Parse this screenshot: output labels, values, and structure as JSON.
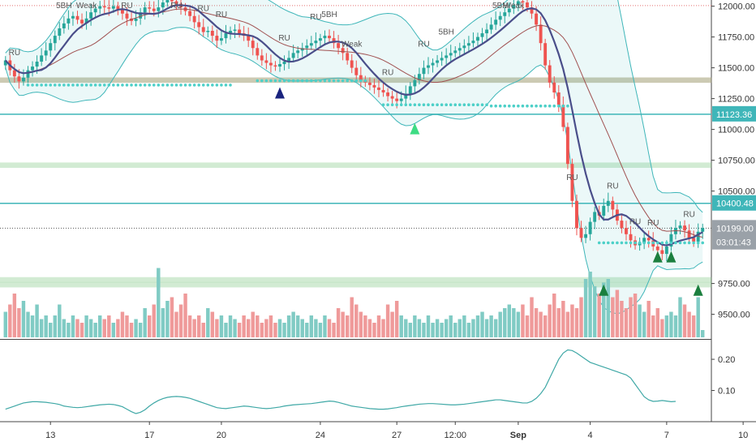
{
  "chart_data": {
    "type": "candlestick",
    "symbol_hint": "",
    "price_axis": {
      "ylim": [
        9300,
        12050
      ],
      "ticks": [
        "12000.00",
        "11750.00",
        "11500.00",
        "11250.00",
        "11000.00",
        "10750.00",
        "10500.00",
        "9750.00",
        "9500.00"
      ],
      "tick_values": [
        12000,
        11750,
        11500,
        11250,
        11000,
        10750,
        10500,
        9750,
        9500
      ]
    },
    "price_labels": [
      {
        "text": "11123.36",
        "value": 11123.36,
        "color": "#3fb6b9"
      },
      {
        "text": "10400.48",
        "value": 10400.48,
        "color": "#3fb6b9"
      },
      {
        "text": "10199.00",
        "value": 10199,
        "color": "#9aa1a8"
      },
      {
        "text": "03:01:43",
        "value": 10085,
        "color": "#9aa1a8"
      }
    ],
    "osc_axis": {
      "ylim": [
        0.0,
        0.26
      ],
      "ticks": [
        "0.20",
        "0.10"
      ],
      "tick_values": [
        0.2,
        0.1
      ]
    },
    "x_labels": [
      "13",
      "17",
      "20",
      "24",
      "27",
      "12:00",
      "Sep",
      "4",
      "7",
      "10"
    ],
    "x_label_idx": [
      10,
      32,
      48,
      70,
      87,
      100,
      114,
      130,
      147,
      164
    ],
    "horizontal_levels": [
      {
        "value": 12005,
        "color": "#e57373",
        "style": "dotted"
      },
      {
        "value": 11400,
        "color": "#e57373",
        "style": "band"
      },
      {
        "value": 11400,
        "color": "#81c784",
        "style": "band"
      },
      {
        "value": 11123.36,
        "color": "#3fb6b9",
        "style": "solid"
      },
      {
        "value": 10710,
        "color": "#81c784",
        "style": "band"
      },
      {
        "value": 10400.48,
        "color": "#3fb6b9",
        "style": "solid"
      },
      {
        "value": 10199,
        "color": "#555555",
        "style": "dotted"
      },
      {
        "value": 9780,
        "color": "#81c784",
        "style": "band"
      },
      {
        "value": 9740,
        "color": "#81c784",
        "style": "band"
      }
    ],
    "close_series": [
      11560,
      11480,
      11430,
      11390,
      11420,
      11480,
      11510,
      11550,
      11600,
      11640,
      11700,
      11760,
      11820,
      11860,
      11900,
      11920,
      11890,
      11860,
      11900,
      11950,
      11980,
      12000,
      11990,
      11980,
      12000,
      11970,
      11940,
      11900,
      11880,
      11900,
      11950,
      11990,
      11980,
      11960,
      11990,
      12030,
      12050,
      12040,
      12020,
      11990,
      11960,
      11920,
      11870,
      11830,
      11790,
      11800,
      11760,
      11720,
      11740,
      11780,
      11800,
      11810,
      11780,
      11760,
      11720,
      11660,
      11600,
      11560,
      11540,
      11520,
      11510,
      11530,
      11550,
      11580,
      11620,
      11640,
      11660,
      11680,
      11700,
      11720,
      11740,
      11760,
      11740,
      11700,
      11660,
      11620,
      11560,
      11500,
      11440,
      11400,
      11380,
      11360,
      11340,
      11320,
      11300,
      11270,
      11250,
      11230,
      11250,
      11290,
      11350,
      11400,
      11450,
      11500,
      11520,
      11540,
      11560,
      11580,
      11600,
      11620,
      11640,
      11660,
      11680,
      11700,
      11720,
      11750,
      11780,
      11810,
      11850,
      11890,
      11920,
      11950,
      11980,
      12010,
      12040,
      12030,
      11990,
      11940,
      11850,
      11700,
      11520,
      11380,
      11300,
      11200,
      11020,
      10720,
      10420,
      10200,
      10120,
      10150,
      10250,
      10330,
      10300,
      10380,
      10420,
      10350,
      10260,
      10200,
      10150,
      10100,
      10060,
      10080,
      10120,
      10100,
      10050,
      10020,
      9990,
      10050,
      10150,
      10200,
      10220,
      10180,
      10120,
      10090,
      10170,
      10200
    ],
    "volume_series": [
      0.35,
      0.45,
      0.6,
      0.4,
      0.5,
      0.35,
      0.3,
      0.45,
      0.25,
      0.3,
      0.2,
      0.3,
      0.45,
      0.25,
      0.2,
      0.3,
      0.25,
      0.2,
      0.3,
      0.25,
      0.2,
      0.3,
      0.25,
      0.3,
      0.2,
      0.25,
      0.35,
      0.3,
      0.2,
      0.25,
      0.2,
      0.4,
      0.3,
      0.45,
      0.95,
      0.4,
      0.5,
      0.55,
      0.35,
      0.45,
      0.6,
      0.3,
      0.25,
      0.3,
      0.2,
      0.4,
      0.35,
      0.25,
      0.3,
      0.2,
      0.3,
      0.25,
      0.2,
      0.3,
      0.25,
      0.35,
      0.3,
      0.2,
      0.25,
      0.3,
      0.2,
      0.25,
      0.2,
      0.3,
      0.35,
      0.3,
      0.25,
      0.2,
      0.3,
      0.25,
      0.2,
      0.3,
      0.25,
      0.2,
      0.4,
      0.35,
      0.3,
      0.55,
      0.45,
      0.35,
      0.3,
      0.25,
      0.2,
      0.3,
      0.25,
      0.45,
      0.35,
      0.5,
      0.3,
      0.25,
      0.2,
      0.3,
      0.25,
      0.2,
      0.3,
      0.2,
      0.25,
      0.2,
      0.25,
      0.3,
      0.2,
      0.25,
      0.3,
      0.2,
      0.25,
      0.3,
      0.35,
      0.25,
      0.3,
      0.25,
      0.35,
      0.4,
      0.45,
      0.4,
      0.35,
      0.45,
      0.3,
      0.55,
      0.4,
      0.35,
      0.3,
      0.45,
      0.6,
      0.4,
      0.5,
      0.35,
      0.45,
      0.4,
      0.55,
      0.8,
      0.9,
      0.7,
      0.6,
      0.75,
      0.8,
      0.55,
      0.65,
      0.5,
      0.4,
      0.55,
      0.6,
      0.45,
      0.35,
      0.5,
      0.3,
      0.4,
      0.25,
      0.3,
      0.35,
      0.3,
      0.55,
      0.45,
      0.35,
      0.3,
      0.55,
      0.1
    ],
    "osc_series": [
      0.04,
      0.045,
      0.05,
      0.055,
      0.06,
      0.062,
      0.064,
      0.064,
      0.063,
      0.062,
      0.06,
      0.058,
      0.055,
      0.05,
      0.048,
      0.046,
      0.045,
      0.046,
      0.048,
      0.05,
      0.052,
      0.054,
      0.055,
      0.056,
      0.055,
      0.052,
      0.048,
      0.04,
      0.032,
      0.026,
      0.03,
      0.038,
      0.05,
      0.06,
      0.068,
      0.074,
      0.078,
      0.08,
      0.081,
      0.08,
      0.078,
      0.075,
      0.07,
      0.065,
      0.06,
      0.055,
      0.05,
      0.045,
      0.043,
      0.042,
      0.044,
      0.046,
      0.048,
      0.05,
      0.049,
      0.047,
      0.045,
      0.043,
      0.042,
      0.043,
      0.045,
      0.047,
      0.05,
      0.052,
      0.054,
      0.055,
      0.056,
      0.057,
      0.058,
      0.06,
      0.062,
      0.064,
      0.066,
      0.065,
      0.062,
      0.058,
      0.054,
      0.05,
      0.048,
      0.046,
      0.044,
      0.042,
      0.041,
      0.04,
      0.04,
      0.041,
      0.043,
      0.045,
      0.048,
      0.05,
      0.052,
      0.054,
      0.056,
      0.057,
      0.058,
      0.058,
      0.057,
      0.056,
      0.055,
      0.054,
      0.054,
      0.055,
      0.056,
      0.058,
      0.06,
      0.062,
      0.064,
      0.066,
      0.068,
      0.07,
      0.07,
      0.068,
      0.066,
      0.064,
      0.062,
      0.06,
      0.06,
      0.065,
      0.075,
      0.09,
      0.11,
      0.14,
      0.17,
      0.2,
      0.22,
      0.23,
      0.228,
      0.22,
      0.21,
      0.2,
      0.19,
      0.185,
      0.18,
      0.175,
      0.17,
      0.165,
      0.16,
      0.155,
      0.15,
      0.14,
      0.12,
      0.1,
      0.08,
      0.07,
      0.065,
      0.066,
      0.068,
      0.066,
      0.064,
      0.065
    ],
    "markers": [
      {
        "i": 2,
        "text": "RU"
      },
      {
        "i": 13,
        "text": "5BH"
      },
      {
        "i": 18,
        "text": "Weak"
      },
      {
        "i": 27,
        "text": "RU"
      },
      {
        "i": 38,
        "text": "RU"
      },
      {
        "i": 44,
        "text": "RU"
      },
      {
        "i": 48,
        "text": "RU"
      },
      {
        "i": 62,
        "text": "RU"
      },
      {
        "i": 69,
        "text": "RU"
      },
      {
        "i": 72,
        "text": "5BH"
      },
      {
        "i": 77,
        "text": "Weak"
      },
      {
        "i": 85,
        "text": "RU"
      },
      {
        "i": 93,
        "text": "RU"
      },
      {
        "i": 98,
        "text": "5BH"
      },
      {
        "i": 110,
        "text": "5BH"
      },
      {
        "i": 113,
        "text": "Weak"
      },
      {
        "i": 126,
        "text": "RU"
      },
      {
        "i": 135,
        "text": "RU"
      },
      {
        "i": 140,
        "text": "RU"
      },
      {
        "i": 144,
        "text": "RU"
      },
      {
        "i": 152,
        "text": "RU"
      }
    ],
    "triangles": [
      {
        "i": 61,
        "value": 11290,
        "color": "#1a237e"
      },
      {
        "i": 91,
        "value": 11000,
        "color": "#3ddc84"
      },
      {
        "i": 133,
        "value": 9690,
        "color": "#1b7f3e"
      },
      {
        "i": 145,
        "value": 9960,
        "color": "#1b7f3e"
      },
      {
        "i": 148,
        "value": 9960,
        "color": "#1b7f3e"
      },
      {
        "i": 154,
        "value": 9690,
        "color": "#1b7f3e"
      }
    ],
    "colors": {
      "up": "#26a69a",
      "down": "#ef5350",
      "ma": "#4a4e8a",
      "ma2": "#a05050",
      "band": "#3fb6b9",
      "band_fill": "rgba(63,182,185,0.10)",
      "dots": "#4dd0c8",
      "vol_up": "#80cbc4",
      "vol_down": "#ef9a9a",
      "osc": "#3fa8a6"
    }
  }
}
